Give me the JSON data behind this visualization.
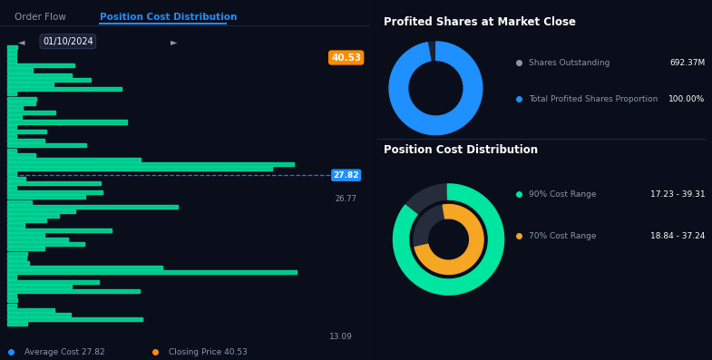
{
  "bg_color": "#0a0e1a",
  "tab_order_flow": "Order Flow",
  "tab_position_cost": "Position Cost Distribution",
  "date_label": "01/10/2024",
  "avg_cost": 27.82,
  "closing_price": 40.53,
  "price_label_27_82": "27.82",
  "price_label_26_77": "26.77",
  "price_label_13_09": "13.09",
  "profited_title": "Profited Shares at Market Close",
  "shares_outstanding_label": "Shares Outstanding",
  "shares_outstanding_value": "692.37M",
  "profited_proportion_label": "Total Profited Shares Proportion",
  "profited_proportion_value": "100.00%",
  "position_cost_title": "Position Cost Distribution",
  "cost_range_90_label": "90% Cost Range",
  "cost_range_90_value": "17.23 - 39.31",
  "cost_range_70_label": "70% Cost Range",
  "cost_range_70_value": "18.84 - 37.24",
  "bar_color": "#00e5a0",
  "avg_line_color": "#1e90ff",
  "orange_label_color": "#ff8c00",
  "blue_donut_color": "#1e90ff",
  "green_donut_color": "#00e5a0",
  "orange_donut_color": "#f5a623",
  "text_color_bright": "#ffffff",
  "text_color_dim": "#8899aa",
  "accent_blue": "#1e90ff",
  "price_min": 13.09,
  "price_max": 40.53,
  "n_bars": 60
}
